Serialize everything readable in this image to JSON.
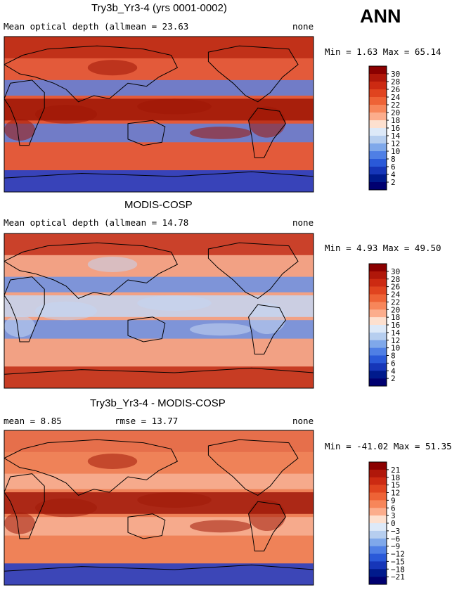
{
  "season": "ANN",
  "panels": [
    {
      "title": "Try3b_Yr3-4 (yrs 0001-0002)",
      "left_label": "Mean optical depth (all clouds)",
      "stat": "mean =   23.63",
      "right_label": "none",
      "minmax": "Min =    1.63 Max =   65.14",
      "colorbar": {
        "labels": [
          "30",
          "28",
          "26",
          "24",
          "22",
          "20",
          "18",
          "16",
          "14",
          "12",
          "10",
          "8",
          "6",
          "4",
          "2"
        ],
        "colors": [
          "#8b0000",
          "#b0170a",
          "#cc2a12",
          "#e0441f",
          "#ee6336",
          "#f7865a",
          "#fcad8c",
          "#fde0cf",
          "#dde9f8",
          "#b6ceef",
          "#7fa8ea",
          "#4f7fe5",
          "#2a59d8",
          "#1636b8",
          "#001a8c",
          "#000070"
        ]
      }
    },
    {
      "title": "MODIS-COSP",
      "left_label": "Mean optical depth (all clouds)",
      "stat": "mean =   14.78",
      "right_label": "none",
      "minmax": "Min =    4.93 Max =   49.50",
      "colorbar": {
        "labels": [
          "30",
          "28",
          "26",
          "24",
          "22",
          "20",
          "18",
          "16",
          "14",
          "12",
          "10",
          "8",
          "6",
          "4",
          "2"
        ],
        "colors": [
          "#8b0000",
          "#b0170a",
          "#cc2a12",
          "#e0441f",
          "#ee6336",
          "#f7865a",
          "#fcad8c",
          "#fde0cf",
          "#dde9f8",
          "#b6ceef",
          "#7fa8ea",
          "#4f7fe5",
          "#2a59d8",
          "#1636b8",
          "#001a8c",
          "#000070"
        ]
      }
    },
    {
      "title": "Try3b_Yr3-4 - MODIS-COSP",
      "left_label": "mean =    8.85",
      "stat": "rmse =   13.77",
      "right_label": "none",
      "minmax": "Min =  -41.02 Max =   51.35",
      "colorbar": {
        "labels": [
          "21",
          "18",
          "15",
          "12",
          "9",
          "6",
          "3",
          "0",
          "−3",
          "−6",
          "−9",
          "−12",
          "−15",
          "−18",
          "−21"
        ],
        "colors": [
          "#8b0000",
          "#b0170a",
          "#cc2a12",
          "#e0441f",
          "#ee6336",
          "#f7865a",
          "#fcad8c",
          "#fde0cf",
          "#dde9f8",
          "#b6ceef",
          "#7fa8ea",
          "#4f7fe5",
          "#2a59d8",
          "#1636b8",
          "#001a8c",
          "#000070"
        ]
      }
    }
  ],
  "map_palettes": [
    {
      "base": "#e35a3a",
      "tropics": "#9e1505",
      "subtropic": "#5d83e0",
      "polar_north": "#bb2a14",
      "polar_south": "#1a3fd0"
    },
    {
      "base": "#f2a184",
      "tropics": "#c4d6f2",
      "subtropic": "#6a92e6",
      "polar_north": "#c3301a",
      "polar_south": "#c02a12"
    },
    {
      "base": "#ef8258",
      "tropics": "#a0190a",
      "subtropic": "#f7b195",
      "polar_north": "#e46c49",
      "polar_south": "#1c3cc8"
    }
  ]
}
